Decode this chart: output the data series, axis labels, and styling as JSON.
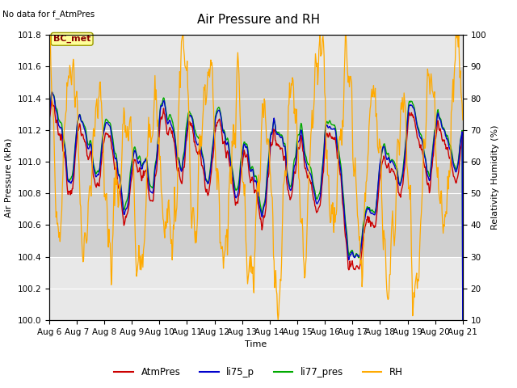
{
  "title": "Air Pressure and RH",
  "subtitle": "No data for f_AtmPres",
  "annotation": "BC_met",
  "xlabel": "Time",
  "ylabel_left": "Air Pressure (kPa)",
  "ylabel_right": "Relativity Humidity (%)",
  "ylim_left": [
    100.0,
    101.8
  ],
  "ylim_right": [
    10,
    100
  ],
  "yticks_left": [
    100.0,
    100.2,
    100.4,
    100.6,
    100.8,
    101.0,
    101.2,
    101.4,
    101.6,
    101.8
  ],
  "yticks_right": [
    10,
    20,
    30,
    40,
    50,
    60,
    70,
    80,
    90,
    100
  ],
  "xtick_labels": [
    "Aug 6",
    "Aug 7",
    "Aug 8",
    "Aug 9",
    "Aug 10",
    "Aug 11",
    "Aug 12",
    "Aug 13",
    "Aug 14",
    "Aug 15",
    "Aug 16",
    "Aug 17",
    "Aug 18",
    "Aug 19",
    "Aug 20",
    "Aug 21"
  ],
  "colors": {
    "AtmPres": "#cc0000",
    "li75_p": "#0000cc",
    "li77_pres": "#00aa00",
    "RH": "#ffaa00"
  },
  "shaded_band": [
    100.4,
    101.6
  ],
  "background_color": "#ffffff",
  "plot_bg_color": "#e8e8e8",
  "shaded_color": "#d0d0d0",
  "grid_color": "#ffffff",
  "title_fontsize": 11,
  "label_fontsize": 8,
  "tick_fontsize": 7.5,
  "subtitle_fontsize": 7.5,
  "annotation_fontsize": 8
}
